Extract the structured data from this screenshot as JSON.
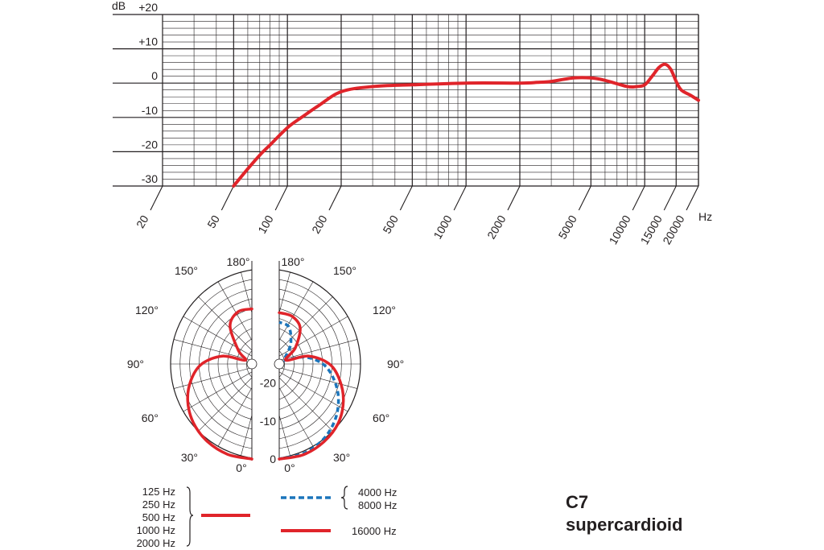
{
  "colors": {
    "red": "#e0242a",
    "blue": "#1b75bb",
    "grid": "#231f20"
  },
  "model": {
    "name": "C7",
    "pattern": "supercardioid"
  },
  "chart_data": [
    {
      "type": "line",
      "xscale": "log",
      "xlabel": "Hz",
      "ylabel": "dB",
      "xlim": [
        20,
        20000
      ],
      "ylim": [
        -30,
        20
      ],
      "x_ticks": [
        "20",
        "50",
        "100",
        "200",
        "500",
        "1000",
        "2000",
        "5000",
        "10000",
        "15000",
        "20000"
      ],
      "y_ticks": [
        "+20",
        "+10",
        "0",
        "-10",
        "-20",
        "-30"
      ],
      "series": [
        {
          "color": "#e0242a",
          "x": [
            50,
            60,
            70,
            80,
            100,
            120,
            150,
            200,
            300,
            500,
            1000,
            2000,
            2500,
            3000,
            4000,
            5000,
            6000,
            8000,
            9000,
            10000,
            11000,
            12000,
            13000,
            14000,
            15000,
            16000,
            18000,
            20000
          ],
          "y": [
            -30,
            -25,
            -21,
            -18,
            -13,
            -10,
            -6.5,
            -2.5,
            -1,
            -0.5,
            0,
            0,
            0.2,
            0.5,
            1.5,
            1.5,
            0.8,
            -1,
            -1,
            -0.5,
            2,
            4.5,
            5.5,
            4,
            0.5,
            -2,
            -3.5,
            -5
          ]
        }
      ]
    },
    {
      "type": "polar",
      "angle_ticks": [
        "0°",
        "30°",
        "60°",
        "90°",
        "120°",
        "150°",
        "180°"
      ],
      "radial_ticks": [
        "0",
        "-10",
        "-20"
      ],
      "series": [
        {
          "name": "125 Hz 250 Hz 500 Hz 1000 Hz 2000 Hz",
          "color": "#e0242a",
          "side": "left",
          "angle_deg": [
            0,
            15,
            30,
            45,
            60,
            75,
            90,
            105,
            120,
            135,
            150,
            165,
            180
          ],
          "db": [
            0,
            -0.4,
            -1.5,
            -3.2,
            -5.5,
            -8.4,
            -11.8,
            -17,
            -23,
            -20,
            -13.5,
            -10.8,
            -10.5
          ]
        },
        {
          "name": "4000 Hz 8000 Hz",
          "color": "#1b75bb",
          "style": "dashed",
          "side": "right",
          "angle_deg": [
            0,
            15,
            30,
            45,
            60,
            75,
            90,
            105,
            120,
            135,
            150,
            165,
            180
          ],
          "db": [
            0,
            -0.6,
            -2,
            -4.2,
            -7,
            -10.2,
            -13.5,
            -18,
            -23,
            -23,
            -19,
            -15,
            -14
          ]
        },
        {
          "name": "16000 Hz",
          "color": "#e0242a",
          "side": "right",
          "angle_deg": [
            0,
            15,
            30,
            45,
            60,
            75,
            90,
            105,
            120,
            135,
            150,
            165,
            180
          ],
          "db": [
            0,
            -0.3,
            -1.4,
            -3,
            -5.5,
            -8.5,
            -11.8,
            -17,
            -23,
            -19,
            -14,
            -12,
            -11.5
          ]
        }
      ]
    }
  ],
  "legend": {
    "group1_labels": [
      "125 Hz",
      "250 Hz",
      "500 Hz",
      "1000 Hz",
      "2000 Hz"
    ],
    "group2_labels": [
      "4000 Hz",
      "8000 Hz"
    ],
    "group3_label": "16000 Hz"
  }
}
